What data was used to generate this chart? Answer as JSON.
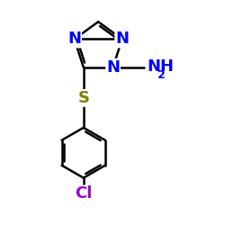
{
  "bg_color": "#ffffff",
  "atom_colors": {
    "N": "#0000ff",
    "S": "#808000",
    "Cl": "#9900cc",
    "C": "#000000"
  },
  "font_size_atom": 13,
  "font_size_subscript": 9,
  "line_width": 1.8,
  "figsize": [
    2.5,
    2.5
  ],
  "dpi": 100
}
